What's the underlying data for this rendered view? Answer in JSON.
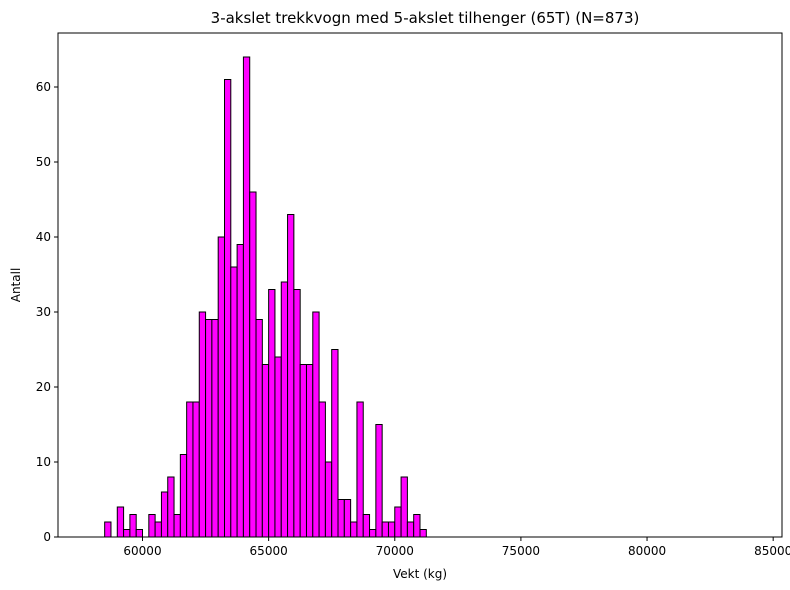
{
  "chart_data": {
    "type": "bar",
    "title": "3-akslet trekkvogn med 5-akslet tilhenger (65T) (N=873)",
    "xlabel": "Vekt (kg)",
    "ylabel": "Antall",
    "xlim": [
      56650,
      85350
    ],
    "ylim": [
      0,
      67.2
    ],
    "xticks": [
      60000,
      65000,
      70000,
      75000,
      80000,
      85000
    ],
    "yticks": [
      0,
      10,
      20,
      30,
      40,
      50,
      60
    ],
    "bin_start": 58500,
    "bin_width": 250,
    "values": [
      2,
      0,
      4,
      1,
      3,
      1,
      0,
      3,
      2,
      6,
      8,
      3,
      11,
      18,
      18,
      30,
      29,
      29,
      40,
      61,
      36,
      39,
      64,
      46,
      29,
      23,
      33,
      24,
      34,
      43,
      33,
      23,
      23,
      30,
      18,
      10,
      25,
      5,
      5,
      2,
      18,
      3,
      1,
      15,
      2,
      2,
      4,
      8,
      2,
      3,
      1
    ],
    "bar_color": "#ff00ff",
    "edge_color": "#000000",
    "grid": false
  }
}
